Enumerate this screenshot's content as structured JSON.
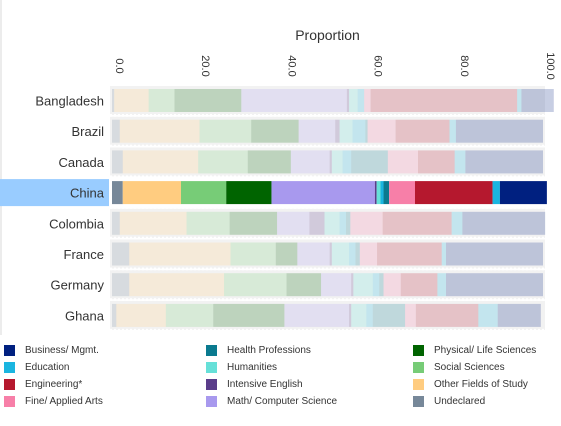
{
  "chart_data": {
    "type": "bar",
    "orientation": "horizontal",
    "stacked": true,
    "title": "Proportion",
    "xlim": [
      0,
      100
    ],
    "ticks": [
      "0.0",
      "20.0",
      "40.0",
      "60.0",
      "80.0",
      "100.0"
    ],
    "tick_values": [
      0,
      20,
      40,
      60,
      80,
      100
    ],
    "categories": [
      "Bangladesh",
      "Brazil",
      "Canada",
      "China",
      "Colombia",
      "France",
      "Germany",
      "Ghana"
    ],
    "highlighted": "China",
    "highlight_color": "#99ccff",
    "series": [
      {
        "name": "Undeclared",
        "color": "#778899",
        "values": [
          0.5,
          1.8,
          2.5,
          2.5,
          1.8,
          4.0,
          4.0,
          1.0
        ]
      },
      {
        "name": "Other Fields of Study",
        "color": "#ffcc80",
        "values": [
          8.0,
          18.5,
          17.5,
          13.5,
          15.5,
          23.5,
          22.0,
          11.5
        ]
      },
      {
        "name": "Social Sciences",
        "color": "#77cc77",
        "values": [
          6.0,
          12.0,
          11.5,
          10.5,
          10.0,
          10.5,
          14.5,
          11.0
        ]
      },
      {
        "name": "Physical/ Life Sciences",
        "color": "#006400",
        "values": [
          15.5,
          11.0,
          10.0,
          10.5,
          11.0,
          5.0,
          8.0,
          16.5
        ]
      },
      {
        "name": "Math/ Computer Science",
        "color": "#a899ee",
        "values": [
          24.5,
          8.5,
          9.0,
          24.0,
          7.5,
          7.5,
          7.0,
          15.0
        ]
      },
      {
        "name": "Intensive English",
        "color": "#5a3d8a",
        "values": [
          0.5,
          1.0,
          0.5,
          0.4,
          3.5,
          0.5,
          0.5,
          0.5
        ]
      },
      {
        "name": "Humanities",
        "color": "#66e0d8",
        "values": [
          2.0,
          3.0,
          2.5,
          0.9,
          3.5,
          4.0,
          4.5,
          3.5
        ]
      },
      {
        "name": "Education",
        "color": "#1ab5e0",
        "values": [
          1.5,
          3.0,
          2.0,
          0.7,
          1.5,
          1.5,
          1.5,
          1.5
        ]
      },
      {
        "name": "Health Professions",
        "color": "#0a7a8f",
        "values": [
          0.0,
          0.5,
          8.5,
          1.3,
          1.0,
          1.0,
          1.0,
          7.5
        ]
      },
      {
        "name": "Fine/ Applied Arts",
        "color": "#f77fa8",
        "values": [
          1.5,
          6.5,
          7.0,
          6.0,
          7.5,
          4.0,
          4.0,
          2.5
        ]
      },
      {
        "name": "Engineering*",
        "color": "#b5182e",
        "values": [
          34.0,
          12.5,
          8.5,
          18.0,
          16.0,
          15.0,
          8.5,
          14.5
        ]
      },
      {
        "name": "Education",
        "color": "#1ab5e0",
        "values": [
          1.0,
          1.5,
          2.5,
          1.7,
          2.5,
          1.0,
          2.0,
          4.5
        ]
      },
      {
        "name": "Business/ Mgmt.",
        "color": "#002080",
        "values": [
          7.5,
          20.2,
          18.0,
          10.9,
          19.2,
          22.5,
          22.5,
          10.0
        ]
      }
    ]
  },
  "legend": [
    {
      "label": "Business/ Mgmt.",
      "color": "#002080"
    },
    {
      "label": "Education",
      "color": "#1ab5e0"
    },
    {
      "label": "Engineering*",
      "color": "#b5182e"
    },
    {
      "label": "Fine/ Applied Arts",
      "color": "#f77fa8"
    },
    {
      "label": "Health Professions",
      "color": "#0a7a8f"
    },
    {
      "label": "Humanities",
      "color": "#66e0d8"
    },
    {
      "label": "Intensive English",
      "color": "#5a3d8a"
    },
    {
      "label": "Math/ Computer Science",
      "color": "#a899ee"
    },
    {
      "label": "Physical/ Life Sciences",
      "color": "#006400"
    },
    {
      "label": "Social Sciences",
      "color": "#77cc77"
    },
    {
      "label": "Other Fields of Study",
      "color": "#ffcc80"
    },
    {
      "label": "Undeclared",
      "color": "#778899"
    }
  ]
}
